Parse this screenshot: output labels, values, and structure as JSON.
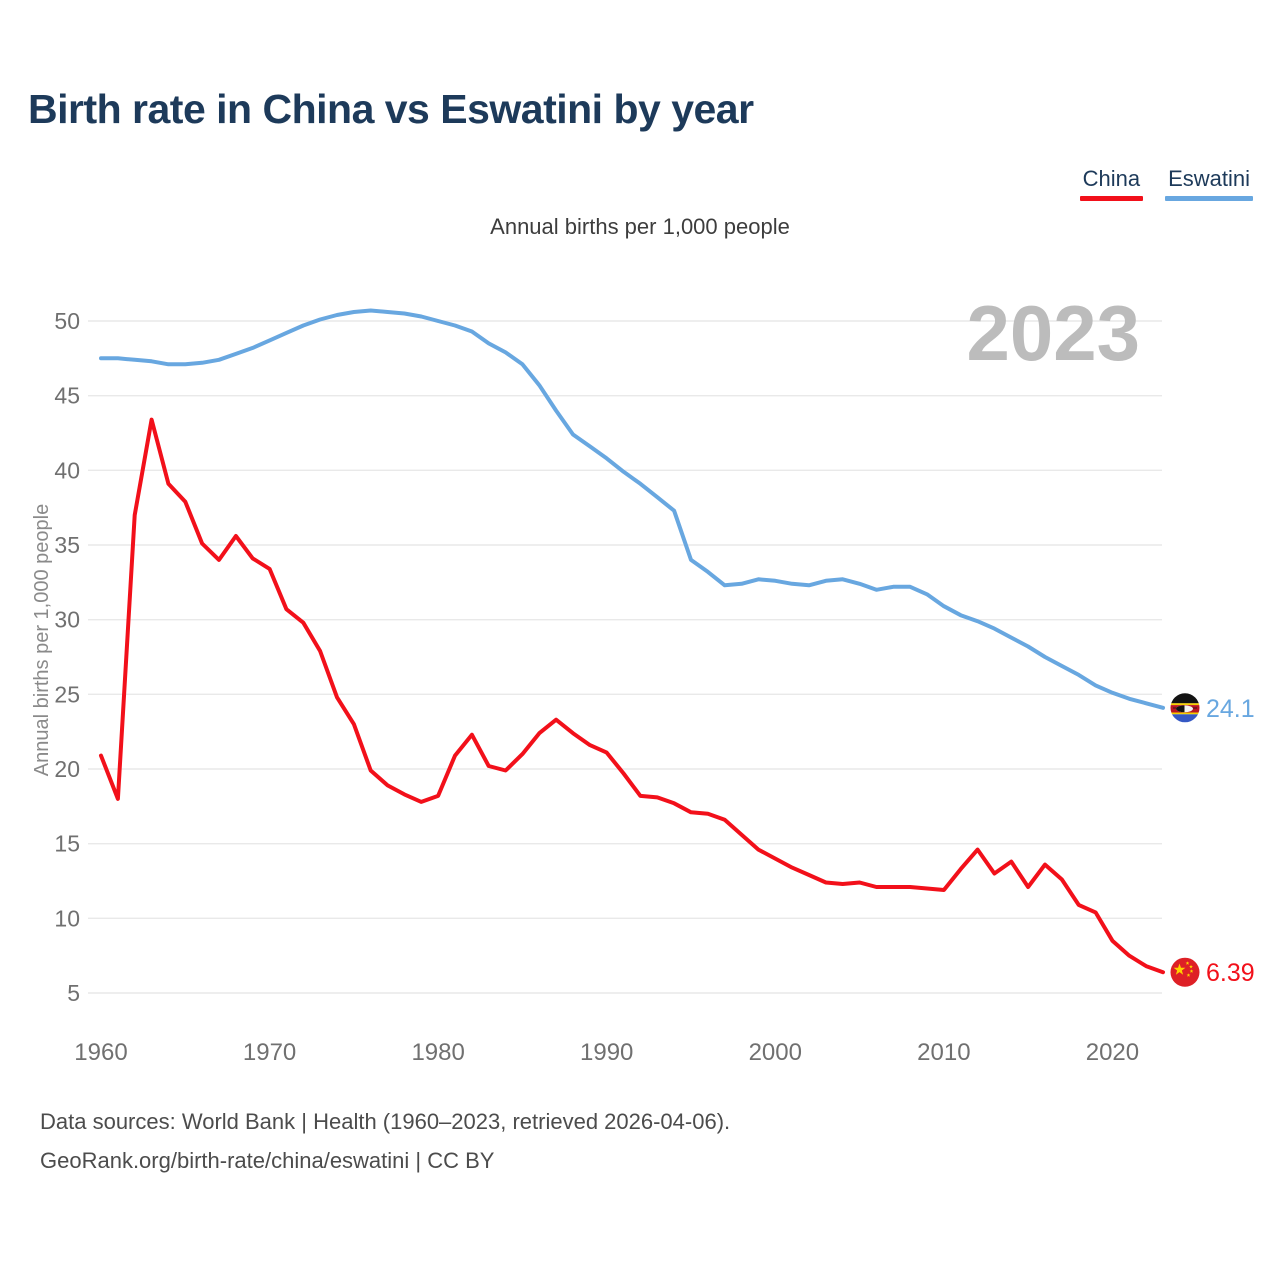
{
  "header": {
    "title": "Birth rate in China vs Eswatini by year"
  },
  "legend": {
    "items": [
      {
        "label": "China",
        "color": "#f2101a"
      },
      {
        "label": "Eswatini",
        "color": "#68a7e0"
      }
    ]
  },
  "subtitle": "Annual births per 1,000 people",
  "footer": {
    "line1": "Data sources: World Bank | Health (1960–2023, retrieved 2026-04-06).",
    "line2": "GeoRank.org/birth-rate/china/eswatini | CC BY"
  },
  "chart_data": {
    "type": "line",
    "title": "Birth rate in China vs Eswatini by year",
    "subtitle": "Annual births per 1,000 people",
    "ylabel": "Annual births per 1,000 people",
    "watermark": "2023",
    "grid": "horizontal",
    "legend_position": "top-right",
    "xlim": [
      1960,
      2023
    ],
    "ylim": [
      5,
      50
    ],
    "x_ticks": [
      1960,
      1970,
      1980,
      1990,
      2000,
      2010,
      2020
    ],
    "y_ticks": [
      5,
      10,
      15,
      20,
      25,
      30,
      35,
      40,
      45,
      50
    ],
    "years": [
      1960,
      1961,
      1962,
      1963,
      1964,
      1965,
      1966,
      1967,
      1968,
      1969,
      1970,
      1971,
      1972,
      1973,
      1974,
      1975,
      1976,
      1977,
      1978,
      1979,
      1980,
      1981,
      1982,
      1983,
      1984,
      1985,
      1986,
      1987,
      1988,
      1989,
      1990,
      1991,
      1992,
      1993,
      1994,
      1995,
      1996,
      1997,
      1998,
      1999,
      2000,
      2001,
      2002,
      2003,
      2004,
      2005,
      2006,
      2007,
      2008,
      2009,
      2010,
      2011,
      2012,
      2013,
      2014,
      2015,
      2016,
      2017,
      2018,
      2019,
      2020,
      2021,
      2022,
      2023
    ],
    "series": [
      {
        "name": "China",
        "color": "#f2101a",
        "flag": "china",
        "end_label": "6.39",
        "values": [
          20.9,
          18.0,
          37.0,
          43.4,
          39.1,
          37.9,
          35.1,
          34.0,
          35.6,
          34.1,
          33.4,
          30.7,
          29.8,
          27.9,
          24.8,
          23.0,
          19.9,
          18.9,
          18.3,
          17.8,
          18.2,
          20.9,
          22.3,
          20.2,
          19.9,
          21.0,
          22.4,
          23.3,
          22.4,
          21.6,
          21.1,
          19.7,
          18.2,
          18.1,
          17.7,
          17.1,
          17.0,
          16.6,
          15.6,
          14.6,
          14.0,
          13.4,
          12.9,
          12.4,
          12.3,
          12.4,
          12.1,
          12.1,
          12.1,
          12.0,
          11.9,
          13.3,
          14.6,
          13.0,
          13.8,
          12.1,
          13.6,
          12.6,
          10.9,
          10.4,
          8.5,
          7.5,
          6.8,
          6.39
        ]
      },
      {
        "name": "Eswatini",
        "color": "#68a7e0",
        "flag": "eswatini",
        "end_label": "24.1",
        "values": [
          47.5,
          47.5,
          47.4,
          47.3,
          47.1,
          47.1,
          47.2,
          47.4,
          47.8,
          48.2,
          48.7,
          49.2,
          49.7,
          50.1,
          50.4,
          50.6,
          50.7,
          50.6,
          50.5,
          50.3,
          50.0,
          49.7,
          49.3,
          48.5,
          47.9,
          47.1,
          45.7,
          44.0,
          42.4,
          41.6,
          40.8,
          39.9,
          39.1,
          38.2,
          37.3,
          34.0,
          33.2,
          32.3,
          32.4,
          32.7,
          32.6,
          32.4,
          32.3,
          32.6,
          32.7,
          32.4,
          32.0,
          32.2,
          32.2,
          31.7,
          30.9,
          30.3,
          29.9,
          29.4,
          28.8,
          28.2,
          27.5,
          26.9,
          26.3,
          25.6,
          25.1,
          24.7,
          24.4,
          24.1
        ]
      }
    ],
    "icons": {
      "china_flag": {
        "base": "#de2026",
        "star": "#ffd100"
      },
      "eswatini_flag": {
        "black": "#131313",
        "yellow": "#f6cf00",
        "red": "#bb1522",
        "blue": "#3558c4",
        "shield": "#f4f4f4"
      }
    },
    "style": {
      "grid_color": "#e9e9e9",
      "tick_color": "#707070",
      "watermark_color": "#bcbcbc",
      "axis_title_color": "#8a8a8a"
    }
  }
}
